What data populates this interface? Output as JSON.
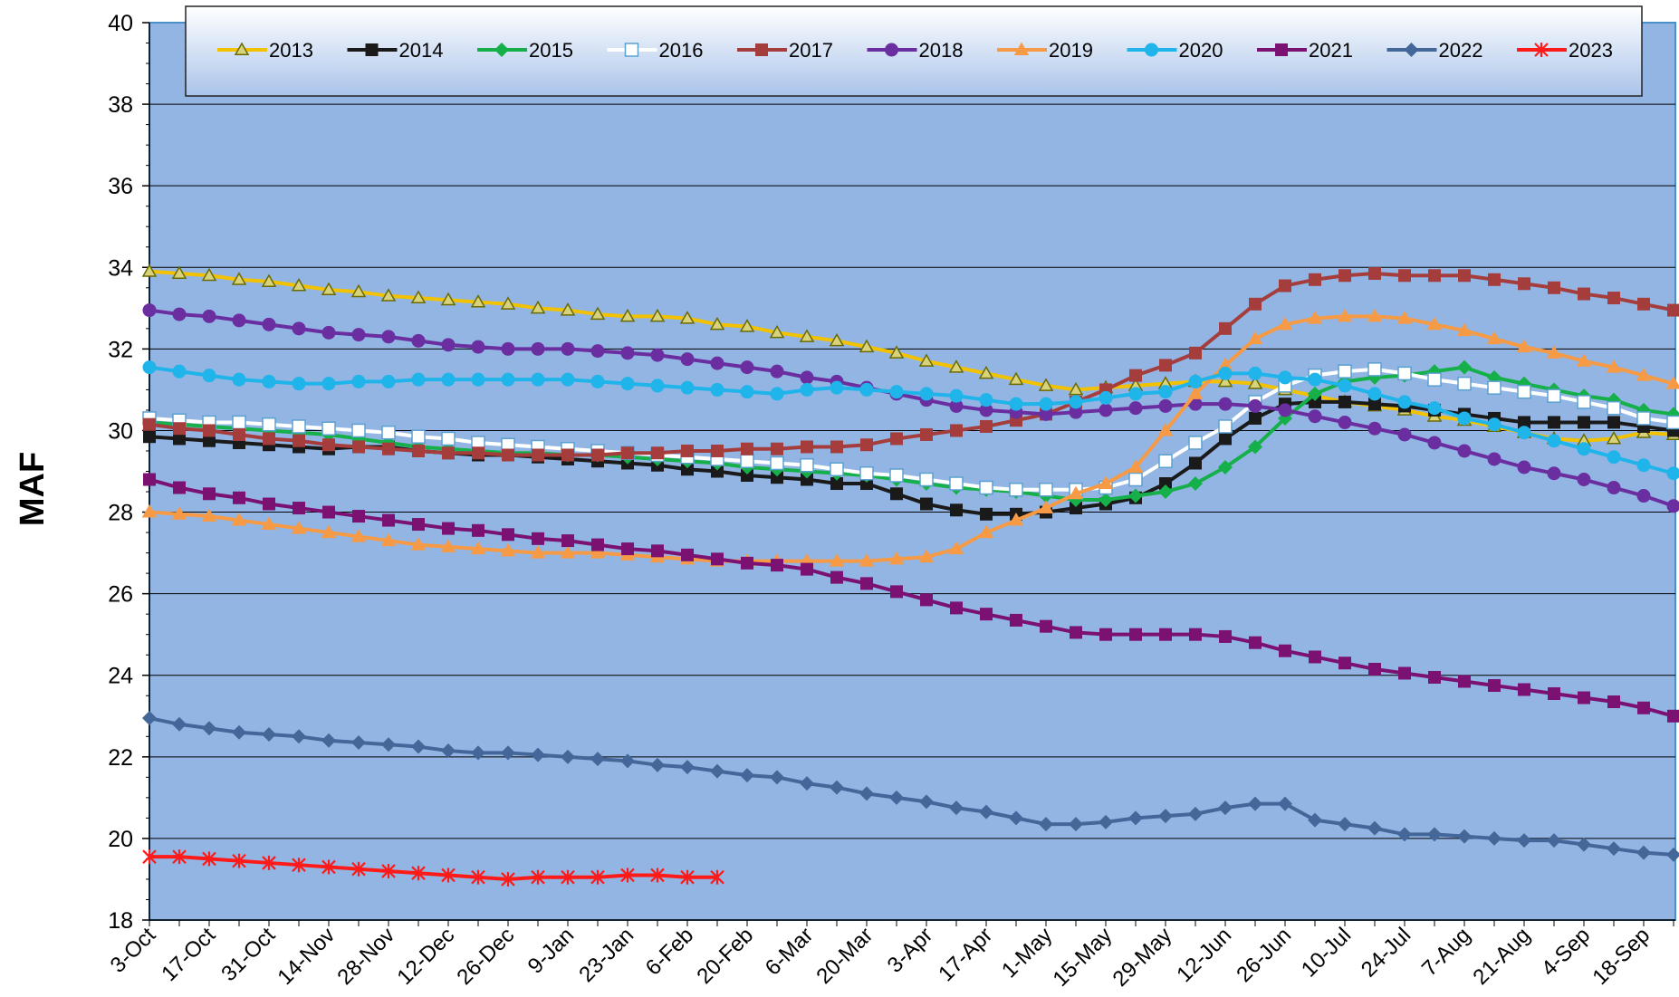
{
  "chart_data": {
    "type": "line",
    "ylabel": "MAF",
    "ylim": [
      18,
      40
    ],
    "y_ticks": [
      "18",
      "20",
      "22",
      "24",
      "26",
      "28",
      "30",
      "32",
      "34",
      "36",
      "38",
      "40"
    ],
    "x_tick_labels": [
      "3-Oct",
      "17-Oct",
      "31-Oct",
      "14-Nov",
      "28-Nov",
      "12-Dec",
      "26-Dec",
      "9-Jan",
      "23-Jan",
      "6-Feb",
      "20-Feb",
      "6-Mar",
      "20-Mar",
      "3-Apr",
      "17-Apr",
      "1-May",
      "15-May",
      "29-May",
      "12-Jun",
      "26-Jun",
      "10-Jul",
      "24-Jul",
      "7-Aug",
      "21-Aug",
      "4-Sep",
      "18-Sep"
    ],
    "x_note": "weekly points; x is the week index starting at 3-Oct",
    "grid": "horizontal",
    "legend_position": "top",
    "series": [
      {
        "name": "2013",
        "color": "#f2c200",
        "marker": "triangle-open",
        "values": [
          33.9,
          33.85,
          33.8,
          33.7,
          33.65,
          33.55,
          33.45,
          33.4,
          33.3,
          33.25,
          33.2,
          33.15,
          33.1,
          33.0,
          32.95,
          32.85,
          32.8,
          32.8,
          32.75,
          32.6,
          32.55,
          32.4,
          32.3,
          32.2,
          32.05,
          31.9,
          31.7,
          31.55,
          31.4,
          31.25,
          31.1,
          31.0,
          31.05,
          31.1,
          31.15,
          31.2,
          31.2,
          31.15,
          31.0,
          30.85,
          30.7,
          30.6,
          30.5,
          30.35,
          30.25,
          30.1,
          29.95,
          29.8,
          29.75,
          29.8,
          29.95,
          29.9
        ]
      },
      {
        "name": "2014",
        "color": "#1a1a1a",
        "marker": "square",
        "values": [
          29.85,
          29.8,
          29.75,
          29.7,
          29.65,
          29.6,
          29.55,
          29.6,
          29.6,
          29.5,
          29.45,
          29.4,
          29.4,
          29.35,
          29.3,
          29.25,
          29.2,
          29.15,
          29.05,
          29.0,
          28.9,
          28.85,
          28.8,
          28.7,
          28.7,
          28.45,
          28.2,
          28.05,
          27.95,
          27.95,
          28.0,
          28.1,
          28.2,
          28.35,
          28.7,
          29.2,
          29.8,
          30.3,
          30.65,
          30.7,
          30.7,
          30.65,
          30.6,
          30.5,
          30.4,
          30.3,
          30.2,
          30.2,
          30.2,
          30.2,
          30.1,
          30.0
        ]
      },
      {
        "name": "2015",
        "color": "#16b04a",
        "marker": "diamond",
        "values": [
          30.2,
          30.15,
          30.1,
          30.05,
          30.0,
          29.95,
          29.9,
          29.8,
          29.7,
          29.6,
          29.55,
          29.5,
          29.45,
          29.45,
          29.4,
          29.4,
          29.35,
          29.3,
          29.25,
          29.2,
          29.1,
          29.05,
          29.0,
          28.95,
          28.9,
          28.8,
          28.7,
          28.6,
          28.55,
          28.5,
          28.4,
          28.3,
          28.3,
          28.4,
          28.5,
          28.7,
          29.1,
          29.6,
          30.3,
          30.9,
          31.2,
          31.3,
          31.35,
          31.45,
          31.55,
          31.3,
          31.15,
          31.0,
          30.85,
          30.75,
          30.5,
          30.4
        ]
      },
      {
        "name": "2016",
        "color": "#ffffff",
        "marker": "square-open",
        "values": [
          30.3,
          30.25,
          30.2,
          30.2,
          30.15,
          30.1,
          30.05,
          30.0,
          29.95,
          29.85,
          29.8,
          29.7,
          29.65,
          29.6,
          29.55,
          29.5,
          29.45,
          29.4,
          29.35,
          29.3,
          29.25,
          29.2,
          29.15,
          29.05,
          28.95,
          28.9,
          28.8,
          28.7,
          28.6,
          28.55,
          28.55,
          28.55,
          28.6,
          28.8,
          29.25,
          29.7,
          30.1,
          30.7,
          31.1,
          31.35,
          31.45,
          31.5,
          31.4,
          31.25,
          31.15,
          31.05,
          30.95,
          30.85,
          30.7,
          30.55,
          30.3,
          30.2
        ]
      },
      {
        "name": "2017",
        "color": "#a63d3d",
        "marker": "square",
        "values": [
          30.15,
          30.05,
          30.0,
          29.9,
          29.8,
          29.75,
          29.65,
          29.6,
          29.55,
          29.5,
          29.45,
          29.45,
          29.4,
          29.4,
          29.4,
          29.4,
          29.45,
          29.45,
          29.5,
          29.5,
          29.55,
          29.55,
          29.6,
          29.6,
          29.65,
          29.8,
          29.9,
          30.0,
          30.1,
          30.25,
          30.4,
          30.7,
          31.0,
          31.35,
          31.6,
          31.9,
          32.5,
          33.1,
          33.55,
          33.7,
          33.8,
          33.85,
          33.8,
          33.8,
          33.8,
          33.7,
          33.6,
          33.5,
          33.35,
          33.25,
          33.1,
          32.95
        ]
      },
      {
        "name": "2018",
        "color": "#6a2ea0",
        "marker": "circle",
        "values": [
          32.95,
          32.85,
          32.8,
          32.7,
          32.6,
          32.5,
          32.4,
          32.35,
          32.3,
          32.2,
          32.1,
          32.05,
          32.0,
          32.0,
          32.0,
          31.95,
          31.9,
          31.85,
          31.75,
          31.65,
          31.55,
          31.45,
          31.3,
          31.2,
          31.05,
          30.9,
          30.75,
          30.6,
          30.5,
          30.45,
          30.4,
          30.45,
          30.5,
          30.55,
          30.6,
          30.65,
          30.65,
          30.6,
          30.5,
          30.35,
          30.2,
          30.05,
          29.9,
          29.7,
          29.5,
          29.3,
          29.1,
          28.95,
          28.8,
          28.6,
          28.4,
          28.15
        ]
      },
      {
        "name": "2019",
        "color": "#f79a46",
        "marker": "triangle",
        "values": [
          28.0,
          27.95,
          27.9,
          27.8,
          27.7,
          27.6,
          27.5,
          27.4,
          27.3,
          27.2,
          27.15,
          27.1,
          27.05,
          27.0,
          27.0,
          27.0,
          26.95,
          26.9,
          26.85,
          26.8,
          26.8,
          26.8,
          26.8,
          26.8,
          26.8,
          26.85,
          26.9,
          27.1,
          27.5,
          27.8,
          28.1,
          28.45,
          28.7,
          29.1,
          30.0,
          30.9,
          31.6,
          32.25,
          32.6,
          32.75,
          32.8,
          32.8,
          32.75,
          32.6,
          32.45,
          32.25,
          32.05,
          31.9,
          31.7,
          31.55,
          31.35,
          31.15
        ]
      },
      {
        "name": "2020",
        "color": "#1fb4ea",
        "marker": "circle",
        "values": [
          31.55,
          31.45,
          31.35,
          31.25,
          31.2,
          31.15,
          31.15,
          31.2,
          31.2,
          31.25,
          31.25,
          31.25,
          31.25,
          31.25,
          31.25,
          31.2,
          31.15,
          31.1,
          31.05,
          31.0,
          30.95,
          30.9,
          31.0,
          31.05,
          31.0,
          30.95,
          30.9,
          30.85,
          30.75,
          30.65,
          30.65,
          30.7,
          30.8,
          30.9,
          30.95,
          31.2,
          31.4,
          31.4,
          31.3,
          31.25,
          31.1,
          30.9,
          30.7,
          30.55,
          30.3,
          30.15,
          29.95,
          29.75,
          29.55,
          29.35,
          29.15,
          28.95
        ]
      },
      {
        "name": "2021",
        "color": "#7b1173",
        "marker": "square",
        "values": [
          28.8,
          28.6,
          28.45,
          28.35,
          28.2,
          28.1,
          28.0,
          27.9,
          27.8,
          27.7,
          27.6,
          27.55,
          27.45,
          27.35,
          27.3,
          27.2,
          27.1,
          27.05,
          26.95,
          26.85,
          26.75,
          26.7,
          26.6,
          26.4,
          26.25,
          26.05,
          25.85,
          25.65,
          25.5,
          25.35,
          25.2,
          25.05,
          25.0,
          25.0,
          25.0,
          25.0,
          24.95,
          24.8,
          24.6,
          24.45,
          24.3,
          24.15,
          24.05,
          23.95,
          23.85,
          23.75,
          23.65,
          23.55,
          23.45,
          23.35,
          23.2,
          23.0
        ]
      },
      {
        "name": "2022",
        "color": "#44679a",
        "marker": "diamond",
        "values": [
          22.95,
          22.8,
          22.7,
          22.6,
          22.55,
          22.5,
          22.4,
          22.35,
          22.3,
          22.25,
          22.15,
          22.1,
          22.1,
          22.05,
          22.0,
          21.95,
          21.9,
          21.8,
          21.75,
          21.65,
          21.55,
          21.5,
          21.35,
          21.25,
          21.1,
          21.0,
          20.9,
          20.75,
          20.65,
          20.5,
          20.35,
          20.35,
          20.4,
          20.5,
          20.55,
          20.6,
          20.75,
          20.85,
          20.85,
          20.45,
          20.35,
          20.25,
          20.1,
          20.1,
          20.05,
          20.0,
          19.95,
          19.95,
          19.85,
          19.75,
          19.65,
          19.6
        ]
      },
      {
        "name": "2023",
        "color": "#ff1a1a",
        "marker": "asterisk",
        "values": [
          19.55,
          19.55,
          19.5,
          19.45,
          19.4,
          19.35,
          19.3,
          19.25,
          19.2,
          19.15,
          19.1,
          19.05,
          19.0,
          19.05,
          19.05,
          19.05,
          19.1,
          19.1,
          19.05,
          19.05
        ]
      }
    ]
  }
}
